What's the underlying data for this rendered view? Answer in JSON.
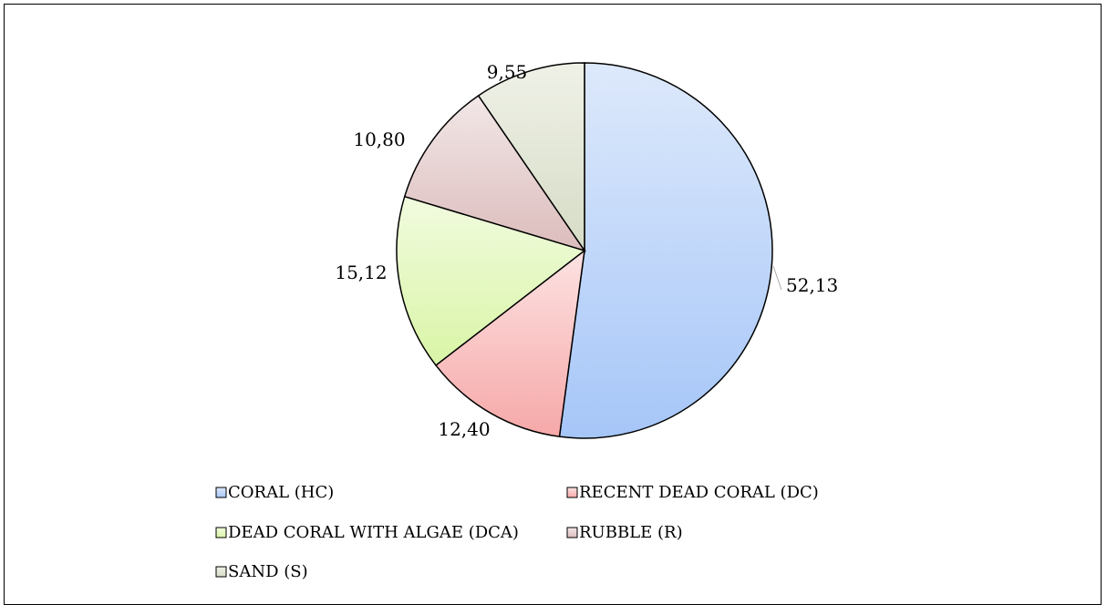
{
  "chart_data": {
    "type": "pie",
    "title": "",
    "start_angle_deg": 0,
    "direction": "clockwise",
    "series": [
      {
        "name": "CORAL (HC)",
        "value": 52.13,
        "label": "52,13",
        "color_light": "#dde9fb",
        "color_dark": "#a6c6f8"
      },
      {
        "name": "RECENT DEAD CORAL (DC)",
        "value": 12.4,
        "label": "12,40",
        "color_light": "#fde2e2",
        "color_dark": "#f6a8a8"
      },
      {
        "name": "DEAD CORAL WITH ALGAE (DCA)",
        "value": 15.12,
        "label": "15,12",
        "color_light": "#f1fbdf",
        "color_dark": "#d9f5a6"
      },
      {
        "name": "RUBBLE (R)",
        "value": 10.8,
        "label": "10,80",
        "color_light": "#f2e7e7",
        "color_dark": "#dcbcbc"
      },
      {
        "name": "SAND (S)",
        "value": 9.55,
        "label": "9,55",
        "color_light": "#eff1e7",
        "color_dark": "#d6dcc6"
      }
    ],
    "legend_position": "bottom",
    "grid": false
  }
}
